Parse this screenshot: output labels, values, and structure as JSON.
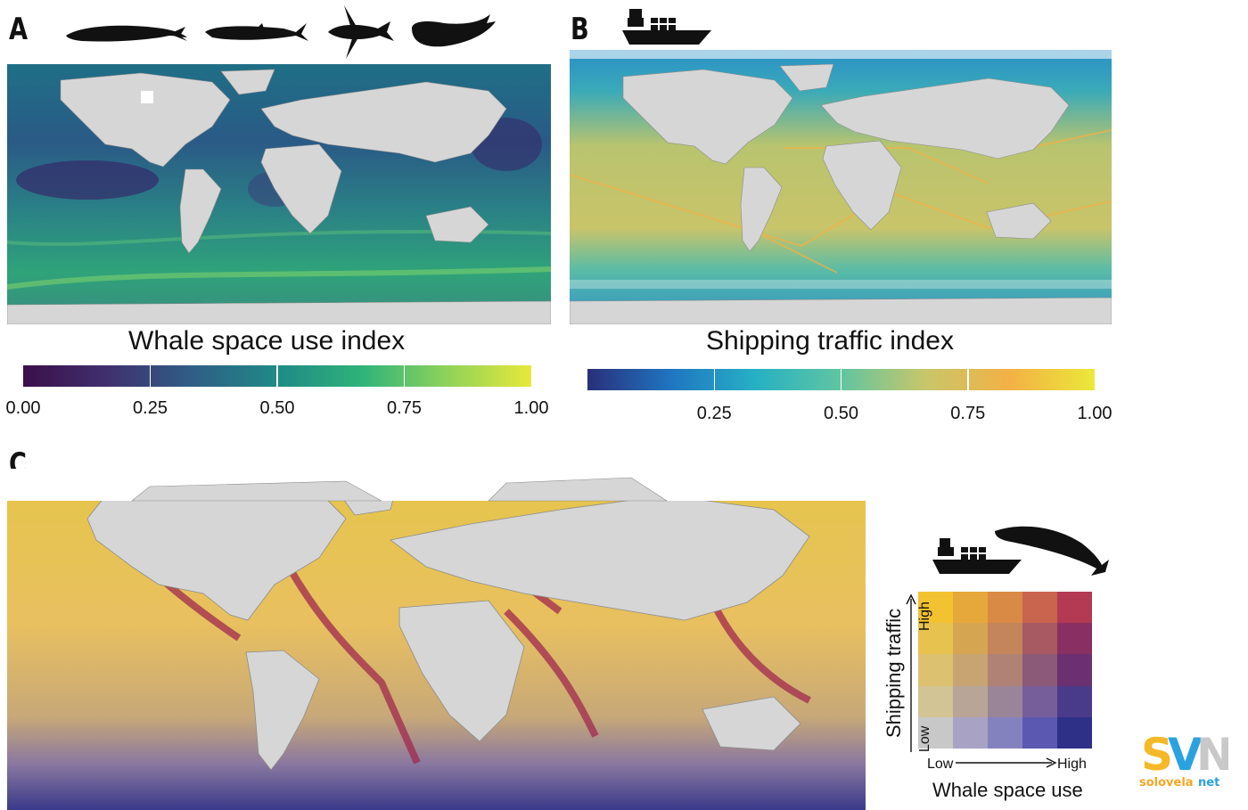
{
  "panels": {
    "a": {
      "letter": "A"
    },
    "b": {
      "letter": "B"
    },
    "c": {
      "letter": "C"
    }
  },
  "whale_legend": {
    "title": "Whale space use index",
    "ticks": [
      "0.00",
      "0.25",
      "0.50",
      "0.75",
      "1.00"
    ],
    "tick_values": [
      0,
      0.25,
      0.5,
      0.75,
      1
    ],
    "range": [
      0,
      1
    ],
    "colors": [
      "#3b0f4a",
      "#40306e",
      "#2f5e86",
      "#1f8a86",
      "#2fb37a",
      "#8fd25a",
      "#e6e83a"
    ]
  },
  "shipping_legend": {
    "title": "Shipping traffic index",
    "ticks": [
      "0.25",
      "0.50",
      "0.75",
      "1.00"
    ],
    "tick_values": [
      0.25,
      0.5,
      0.75,
      1
    ],
    "range": [
      0,
      1
    ],
    "colors": [
      "#2a2f7a",
      "#1f76c2",
      "#27b1c4",
      "#60c5a1",
      "#c8c66a",
      "#f3b145",
      "#ebe83a"
    ]
  },
  "bivariate_legend": {
    "y_title": "Shipping traffic",
    "x_title": "Whale space use",
    "x_low": "Low",
    "x_high": "High",
    "y_low": "Low",
    "y_high": "High",
    "grid_rows_top_to_bottom": [
      [
        "#f2c230",
        "#e6a83a",
        "#d98a44",
        "#c9644e",
        "#b33a52"
      ],
      [
        "#e8c24e",
        "#d6a552",
        "#c4855a",
        "#a85a62",
        "#8a2f62"
      ],
      [
        "#dcc270",
        "#c8a472",
        "#b08276",
        "#8a5a78",
        "#6a3070"
      ],
      [
        "#d2c494",
        "#b8a598",
        "#9a8498",
        "#765e9a",
        "#4a3a8a"
      ],
      [
        "#c8c8c8",
        "#a8a2c4",
        "#8482be",
        "#5a58b0",
        "#2e3088"
      ]
    ]
  },
  "map_colors": {
    "land": "#d6d6d6",
    "border": "#8c8c8c",
    "ice": "#ffffff",
    "whale_ocean": "#2a7f86",
    "shipping_ocean": "#7cc49e",
    "conflict_ocean": "#e7c75a"
  },
  "icons": [
    "blue-whale-icon",
    "fin-whale-icon",
    "humpback-whale-icon",
    "sperm-whale-icon",
    "cargo-ship-icon",
    "whale-icon"
  ],
  "watermark": {
    "top": "SVN",
    "bottom": "solovelanet"
  }
}
